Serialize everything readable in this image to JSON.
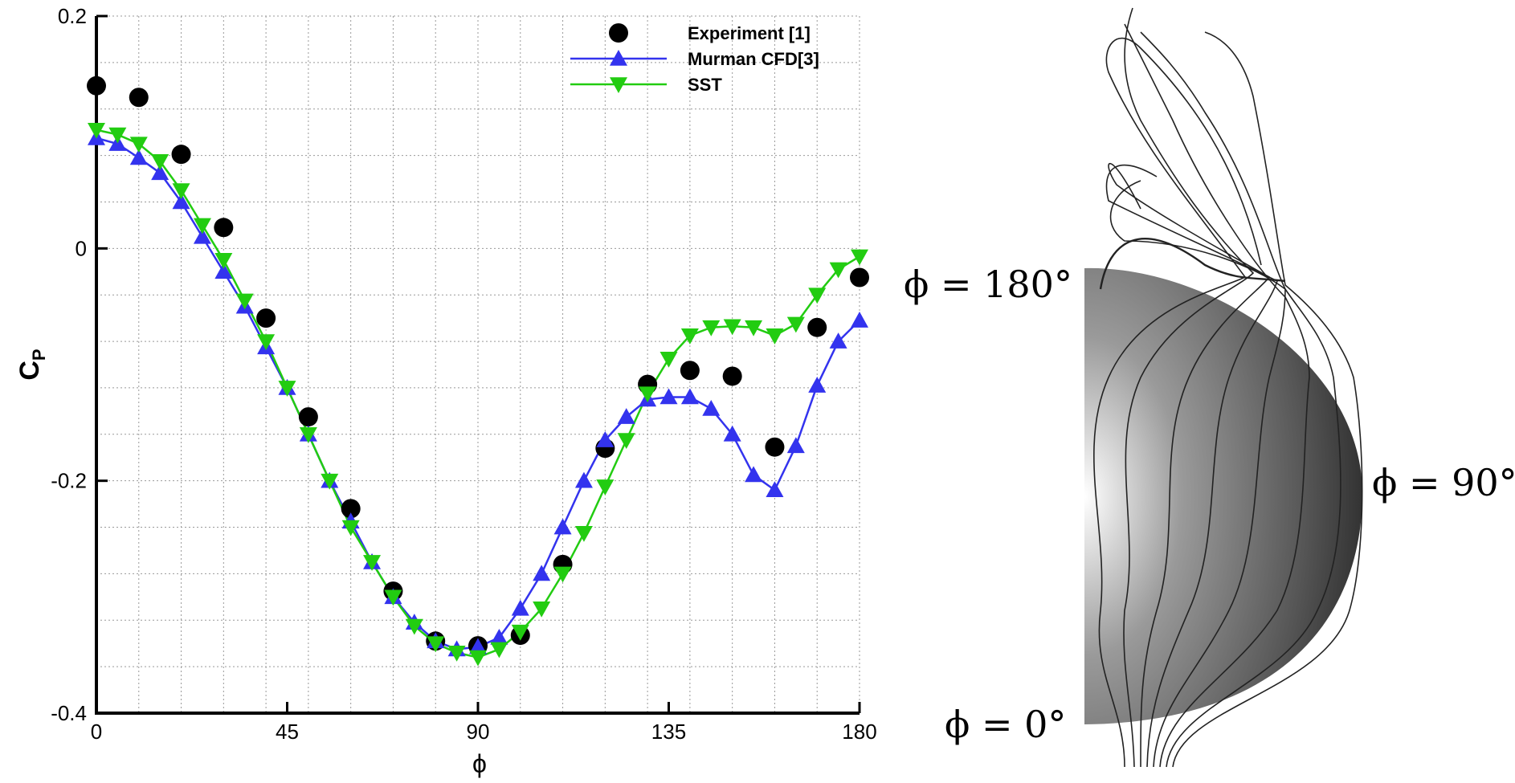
{
  "chart_data": {
    "type": "line",
    "xlabel": "ϕ",
    "ylabel": {
      "text": "C",
      "subscript": "P"
    },
    "xlim": [
      0,
      180
    ],
    "ylim": [
      -0.4,
      0.2
    ],
    "xticks": [
      0,
      45,
      90,
      135,
      180
    ],
    "yticks": [
      -0.4,
      -0.2,
      0,
      0.2
    ],
    "xgrid": [
      10,
      20,
      30,
      40,
      50,
      60,
      70,
      80,
      90,
      100,
      110,
      120,
      130,
      140,
      150,
      160,
      170,
      180
    ],
    "ygrid": [
      -0.36,
      -0.32,
      -0.28,
      -0.24,
      -0.2,
      -0.16,
      -0.12,
      -0.08,
      -0.04,
      0,
      0.04,
      0.08,
      0.12,
      0.16,
      0.2
    ],
    "grid": true,
    "legend": "top-right",
    "series": [
      {
        "name": "Experiment [1]",
        "color": "#000000",
        "marker": "circle",
        "line": false,
        "x": [
          0,
          10,
          20,
          30,
          40,
          50,
          60,
          70,
          80,
          90,
          100,
          110,
          120,
          130,
          140,
          150,
          160,
          170,
          180
        ],
        "values": [
          0.14,
          0.13,
          0.081,
          0.018,
          -0.06,
          -0.145,
          -0.224,
          -0.295,
          -0.338,
          -0.342,
          -0.333,
          -0.272,
          -0.172,
          -0.117,
          -0.105,
          -0.11,
          -0.171,
          -0.068,
          -0.025
        ]
      },
      {
        "name": "Murman CFD[3]",
        "color": "#3333ee",
        "marker": "triangle-up",
        "line": true,
        "x": [
          0,
          5,
          10,
          15,
          20,
          25,
          30,
          35,
          40,
          45,
          50,
          55,
          60,
          65,
          70,
          75,
          80,
          85,
          90,
          95,
          100,
          105,
          110,
          115,
          120,
          125,
          130,
          135,
          140,
          145,
          150,
          155,
          160,
          165,
          170,
          175,
          180
        ],
        "values": [
          0.095,
          0.09,
          0.078,
          0.065,
          0.04,
          0.01,
          -0.02,
          -0.05,
          -0.085,
          -0.12,
          -0.16,
          -0.2,
          -0.235,
          -0.27,
          -0.3,
          -0.322,
          -0.338,
          -0.345,
          -0.343,
          -0.335,
          -0.31,
          -0.28,
          -0.24,
          -0.2,
          -0.165,
          -0.145,
          -0.13,
          -0.128,
          -0.128,
          -0.138,
          -0.16,
          -0.195,
          -0.208,
          -0.17,
          -0.118,
          -0.08,
          -0.062
        ]
      },
      {
        "name": "SST",
        "color": "#22cc11",
        "marker": "triangle-down",
        "line": true,
        "x": [
          0,
          5,
          10,
          15,
          20,
          25,
          30,
          35,
          40,
          45,
          50,
          55,
          60,
          65,
          70,
          75,
          80,
          85,
          90,
          95,
          100,
          105,
          110,
          115,
          120,
          125,
          130,
          135,
          140,
          145,
          150,
          155,
          160,
          165,
          170,
          175,
          180
        ],
        "values": [
          0.102,
          0.098,
          0.09,
          0.075,
          0.05,
          0.02,
          -0.01,
          -0.045,
          -0.08,
          -0.12,
          -0.16,
          -0.2,
          -0.24,
          -0.27,
          -0.3,
          -0.325,
          -0.34,
          -0.348,
          -0.352,
          -0.345,
          -0.33,
          -0.31,
          -0.28,
          -0.245,
          -0.205,
          -0.165,
          -0.125,
          -0.095,
          -0.075,
          -0.068,
          -0.067,
          -0.068,
          -0.075,
          -0.065,
          -0.04,
          -0.018,
          -0.007
        ]
      }
    ]
  },
  "figure": {
    "labels": [
      "ϕ = 180°",
      "ϕ = 90°",
      "ϕ = 0°"
    ]
  }
}
